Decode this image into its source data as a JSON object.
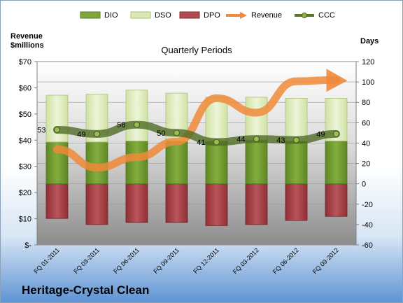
{
  "company": "Heritage-Crystal Clean",
  "chart_data": {
    "type": "bar",
    "title": "Quarterly Periods",
    "y_left_label_line1": "Revenue",
    "y_left_label_line2": "$millions",
    "y_right_label": "Days",
    "categories": [
      "FQ 01-2011",
      "FQ 03-2011",
      "FQ 06-2011",
      "FQ 09-2011",
      "FQ 12-2011",
      "FQ 03-2012",
      "FQ 06-2012",
      "FQ 09-2012"
    ],
    "y_left_ticks": [
      "$-",
      "$10",
      "$20",
      "$30",
      "$40",
      "$50",
      "$60",
      "$70"
    ],
    "y_right_ticks": [
      "-60",
      "-40",
      "-20",
      "0",
      "20",
      "40",
      "60",
      "80",
      "100",
      "120"
    ],
    "ylim_days": [
      -60,
      120
    ],
    "series": [
      {
        "name": "DIO",
        "unit": "days",
        "color": "#6f9a2b",
        "values": [
          41,
          41,
          42,
          42,
          42,
          43,
          42,
          42
        ]
      },
      {
        "name": "DSO",
        "unit": "days",
        "color": "#dbeab5",
        "values": [
          46,
          47,
          50,
          47,
          43,
          42,
          42,
          42
        ]
      },
      {
        "name": "DPO",
        "unit": "days",
        "color": "#a94247",
        "values": [
          -34,
          -40,
          -38,
          -38,
          -41,
          -40,
          -36,
          -32
        ]
      },
      {
        "name": "Revenue",
        "unit": "$millions",
        "color": "#f0893a",
        "values": [
          36.5,
          29.5,
          33.5,
          39.5,
          56,
          50.5,
          62.5,
          63
        ]
      },
      {
        "name": "CCC",
        "unit": "days",
        "color": "#5b7a2d",
        "values": [
          53,
          49,
          58,
          50,
          41,
          44,
          43,
          49
        ]
      }
    ],
    "ccc_labels": [
      "53",
      "49",
      "58",
      "50",
      "41",
      "44",
      "43",
      "49"
    ],
    "legend_position": "top"
  }
}
